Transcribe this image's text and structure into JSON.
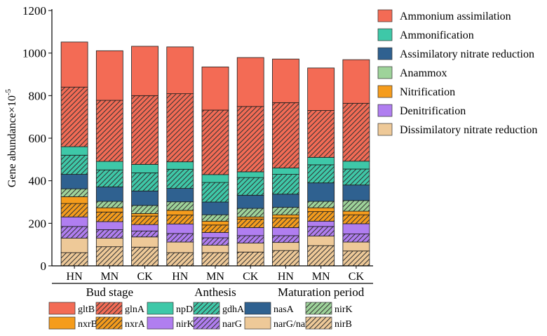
{
  "colors": {
    "gltB": "#f36b55",
    "npD": "#3ec8a8",
    "nasA": "#2f6190",
    "nirK": "#9ed39a",
    "nxrB": "#f59c1c",
    "nirK_den": "#b07ef0",
    "narG": "#eec998"
  },
  "chart_data": {
    "type": "stacked-bar",
    "ylabel": "Gene abundance×10",
    "ylabel_exp": "-5",
    "ylim": [
      0,
      1200
    ],
    "yticks": [
      "0",
      "200",
      "400",
      "600",
      "800",
      "1000",
      "1200"
    ],
    "categories": [
      "HN",
      "MN",
      "CK",
      "HN",
      "MN",
      "CK",
      "HN",
      "MN",
      "CK"
    ],
    "groups": [
      {
        "label": "Bud stage",
        "span": [
          0,
          2
        ]
      },
      {
        "label": "Anthesis",
        "span": [
          3,
          5
        ]
      },
      {
        "label": "Maturation period",
        "span": [
          6,
          8
        ]
      }
    ],
    "process_legend": [
      {
        "label": "Ammonium assimilation",
        "color": "#f36b55"
      },
      {
        "label": "Ammonification",
        "color": "#3ec8a8"
      },
      {
        "label": "Assimilatory nitrate reduction",
        "color": "#2f6190"
      },
      {
        "label": "Anammox",
        "color": "#9ed39a"
      },
      {
        "label": "Nitrification",
        "color": "#f59c1c"
      },
      {
        "label": "Denitrification",
        "color": "#b07ef0"
      },
      {
        "label": "Dissimilatory nitrate reduction",
        "color": "#eec998"
      }
    ],
    "series": [
      {
        "name": "nirB",
        "color": "#eec998",
        "hatch": true,
        "values": [
          62,
          90,
          88,
          62,
          62,
          65,
          72,
          95,
          70
        ]
      },
      {
        "name": "narG/narZ",
        "color": "#eec998",
        "hatch": false,
        "values": [
          68,
          40,
          48,
          50,
          35,
          42,
          38,
          45,
          42
        ]
      },
      {
        "name": "narG",
        "color": "#b07ef0",
        "hatch": true,
        "values": [
          55,
          40,
          28,
          40,
          35,
          35,
          32,
          45,
          38
        ]
      },
      {
        "name": "nirK",
        "color": "#b07ef0",
        "hatch": false,
        "values": [
          45,
          38,
          30,
          45,
          25,
          38,
          38,
          25,
          48
        ]
      },
      {
        "name": "nxrA",
        "color": "#f59c1c",
        "hatch": true,
        "values": [
          63,
          45,
          40,
          42,
          35,
          40,
          45,
          45,
          42
        ]
      },
      {
        "name": "nxrB",
        "color": "#f59c1c",
        "hatch": false,
        "values": [
          32,
          20,
          12,
          22,
          18,
          10,
          15,
          18,
          17
        ]
      },
      {
        "name": "nirK",
        "color": "#9ed39a",
        "hatch": true,
        "values": [
          37,
          30,
          38,
          40,
          30,
          40,
          35,
          30,
          50
        ]
      },
      {
        "name": "nasA",
        "color": "#2f6190",
        "hatch": false,
        "values": [
          68,
          68,
          68,
          63,
          60,
          62,
          62,
          87,
          73
        ]
      },
      {
        "name": "gdhA",
        "color": "#3ec8a8",
        "hatch": true,
        "values": [
          90,
          80,
          85,
          90,
          92,
          83,
          93,
          85,
          75
        ]
      },
      {
        "name": "npD",
        "color": "#3ec8a8",
        "hatch": false,
        "values": [
          40,
          40,
          40,
          35,
          37,
          27,
          30,
          35,
          37
        ]
      },
      {
        "name": "glnA",
        "color": "#f36b55",
        "hatch": true,
        "values": [
          280,
          287,
          323,
          320,
          303,
          307,
          307,
          220,
          272
        ]
      },
      {
        "name": "gltB",
        "color": "#f36b55",
        "hatch": false,
        "values": [
          212,
          233,
          232,
          220,
          203,
          230,
          205,
          200,
          205
        ]
      }
    ],
    "gene_legend": [
      {
        "label": "gltB",
        "color": "#f36b55",
        "hatch": false
      },
      {
        "label": "glnA",
        "color": "#f36b55",
        "hatch": true
      },
      {
        "label": "npD",
        "color": "#3ec8a8",
        "hatch": false
      },
      {
        "label": "gdhA",
        "color": "#3ec8a8",
        "hatch": true
      },
      {
        "label": "nasA",
        "color": "#2f6190",
        "hatch": false
      },
      {
        "label": "nirK",
        "color": "#9ed39a",
        "hatch": true
      },
      {
        "label": "nxrB",
        "color": "#f59c1c",
        "hatch": false
      },
      {
        "label": "nxrA",
        "color": "#f59c1c",
        "hatch": true
      },
      {
        "label": "nirK",
        "color": "#b07ef0",
        "hatch": false
      },
      {
        "label": "narG",
        "color": "#b07ef0",
        "hatch": true
      },
      {
        "label": "narG/narZ",
        "color": "#eec998",
        "hatch": false
      },
      {
        "label": "nirB",
        "color": "#eec998",
        "hatch": true
      }
    ]
  }
}
